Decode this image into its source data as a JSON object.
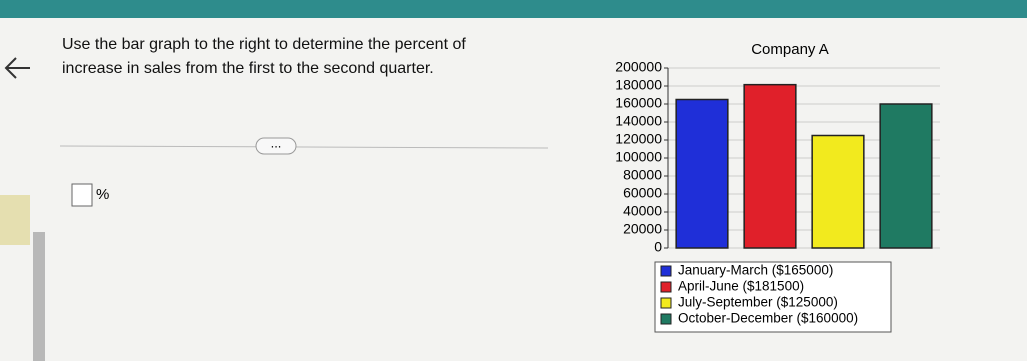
{
  "question": {
    "text_lines": [
      "Use the bar graph to the right to determine the percent of",
      "increase in sales from the first to the second quarter."
    ],
    "more_button": "...",
    "answer_unit": "%"
  },
  "chart_data": {
    "type": "bar",
    "title": "Company A",
    "categories": [
      "January-March ($165000)",
      "April-June ($181500)",
      "July-September ($125000)",
      "October-December ($160000)"
    ],
    "values": [
      165000,
      181500,
      125000,
      160000
    ],
    "colors": [
      "#1f2fd8",
      "#e0202a",
      "#f2ea1e",
      "#1f7a62"
    ],
    "ylim": [
      0,
      200000
    ],
    "yticks": [
      0,
      20000,
      40000,
      60000,
      80000,
      100000,
      120000,
      140000,
      160000,
      180000,
      200000
    ],
    "grid": true,
    "legend": "bottom"
  }
}
